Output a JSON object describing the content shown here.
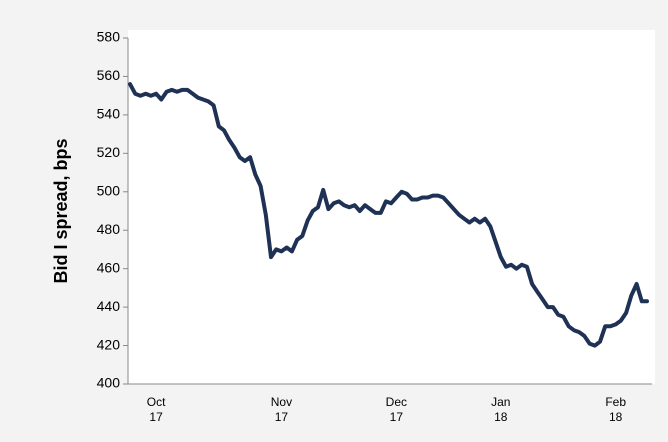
{
  "chart_data": {
    "type": "line",
    "ylabel": "Bid I spread, bps",
    "categories": [
      null,
      null,
      null,
      null,
      null,
      "Oct 17",
      null,
      null,
      null,
      null,
      null,
      null,
      null,
      null,
      null,
      null,
      null,
      null,
      null,
      null,
      null,
      null,
      null,
      null,
      null,
      null,
      null,
      null,
      null,
      "Nov 17",
      null,
      null,
      null,
      null,
      null,
      null,
      null,
      null,
      null,
      null,
      null,
      null,
      null,
      null,
      null,
      null,
      null,
      null,
      null,
      null,
      null,
      "Dec 17",
      null,
      null,
      null,
      null,
      null,
      null,
      null,
      null,
      null,
      null,
      null,
      null,
      null,
      null,
      null,
      null,
      null,
      null,
      null,
      "Jan 18",
      null,
      null,
      null,
      null,
      null,
      null,
      null,
      null,
      null,
      null,
      null,
      null,
      null,
      null,
      null,
      null,
      null,
      null,
      null,
      null,
      null,
      "Feb 18",
      null,
      null,
      null,
      null,
      null,
      null
    ],
    "series": [
      {
        "color": "#1f3255",
        "values": [
          556,
          551,
          550,
          551,
          550,
          551,
          548,
          552,
          553,
          552,
          553,
          553,
          551,
          549,
          548,
          547,
          545,
          534,
          532,
          527,
          523,
          518,
          516,
          518,
          509,
          503,
          488,
          466,
          470,
          469,
          471,
          469,
          475,
          477,
          485,
          490,
          492,
          501,
          491,
          494,
          495,
          493,
          492,
          493,
          490,
          493,
          491,
          489,
          489,
          495,
          494,
          497,
          500,
          499,
          496,
          496,
          497,
          497,
          498,
          498,
          497,
          494,
          491,
          488,
          486,
          484,
          486,
          484,
          486,
          482,
          474,
          466,
          461,
          462,
          460,
          462,
          461,
          452,
          448,
          444,
          440,
          440,
          436,
          435,
          430,
          428,
          427,
          425,
          421,
          420,
          422,
          430,
          430,
          431,
          433,
          437,
          446,
          452,
          443,
          443
        ]
      }
    ],
    "ylim": [
      400,
      580
    ],
    "yticks": [
      400,
      420,
      440,
      460,
      480,
      500,
      520,
      540,
      560,
      580
    ],
    "grid": false
  }
}
